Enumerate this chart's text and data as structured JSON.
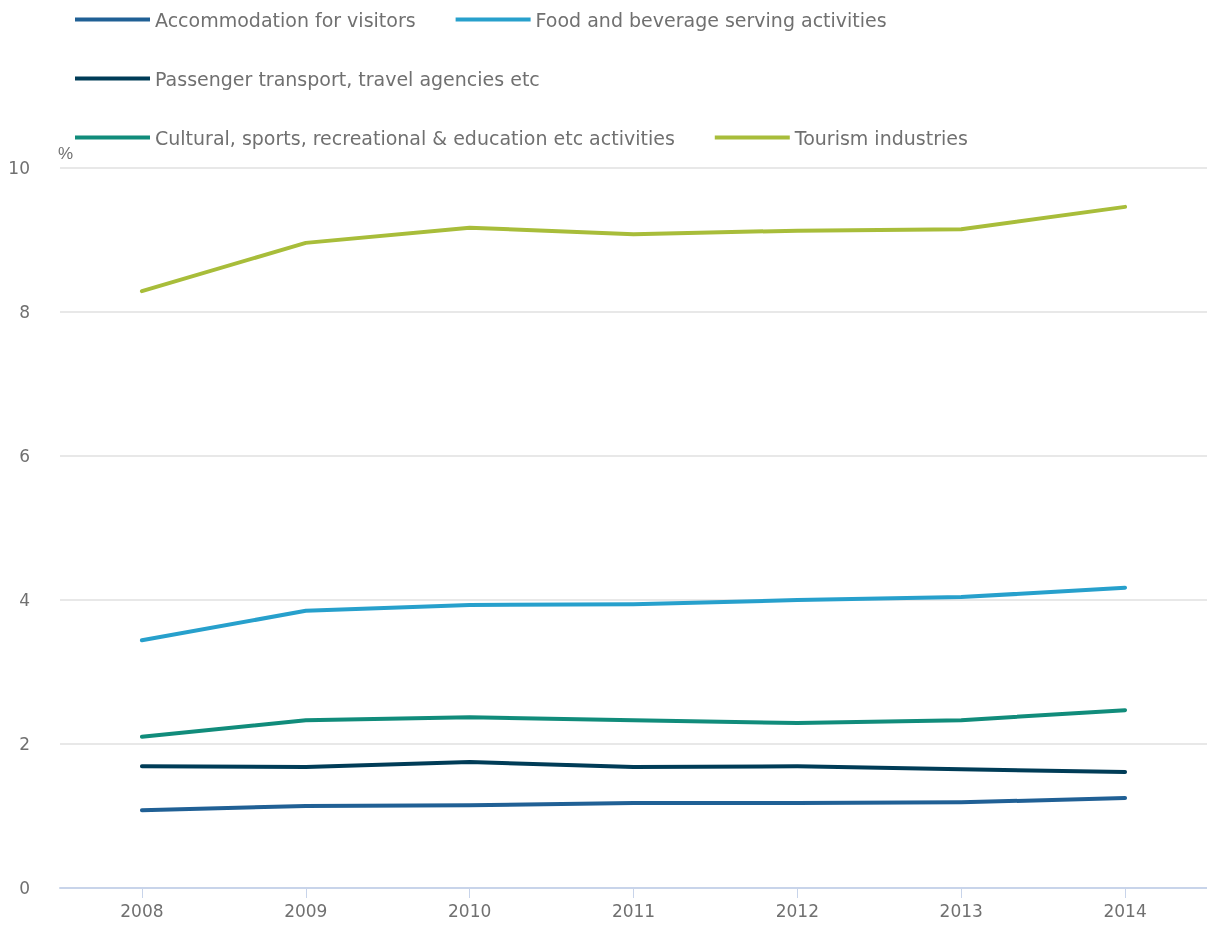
{
  "chart_data": {
    "type": "line",
    "ylabel": "%",
    "categories": [
      "2008",
      "2009",
      "2010",
      "2011",
      "2012",
      "2013",
      "2014"
    ],
    "series": [
      {
        "name": "Accommodation for visitors",
        "color": "#206095",
        "values": [
          1.08,
          1.14,
          1.15,
          1.18,
          1.18,
          1.19,
          1.25
        ]
      },
      {
        "name": "Food and beverage serving activities",
        "color": "#27a0cc",
        "values": [
          3.44,
          3.85,
          3.93,
          3.94,
          4.0,
          4.04,
          4.17
        ]
      },
      {
        "name": "Passenger transport, travel agencies etc",
        "color": "#003c57",
        "values": [
          1.69,
          1.68,
          1.75,
          1.68,
          1.69,
          1.65,
          1.61
        ]
      },
      {
        "name": "Cultural, sports, recreational & education etc activities",
        "color": "#118c7b",
        "values": [
          2.1,
          2.33,
          2.37,
          2.33,
          2.29,
          2.33,
          2.47
        ]
      },
      {
        "name": "Tourism industries",
        "color": "#a8bd3a",
        "values": [
          8.29,
          8.96,
          9.17,
          9.08,
          9.13,
          9.15,
          9.46
        ]
      }
    ],
    "ylim": [
      0,
      10
    ],
    "yticks": [
      0,
      2,
      4,
      6,
      8,
      10
    ],
    "grid": "y",
    "legend": "top left",
    "marker": "none",
    "line_style": "solid"
  }
}
